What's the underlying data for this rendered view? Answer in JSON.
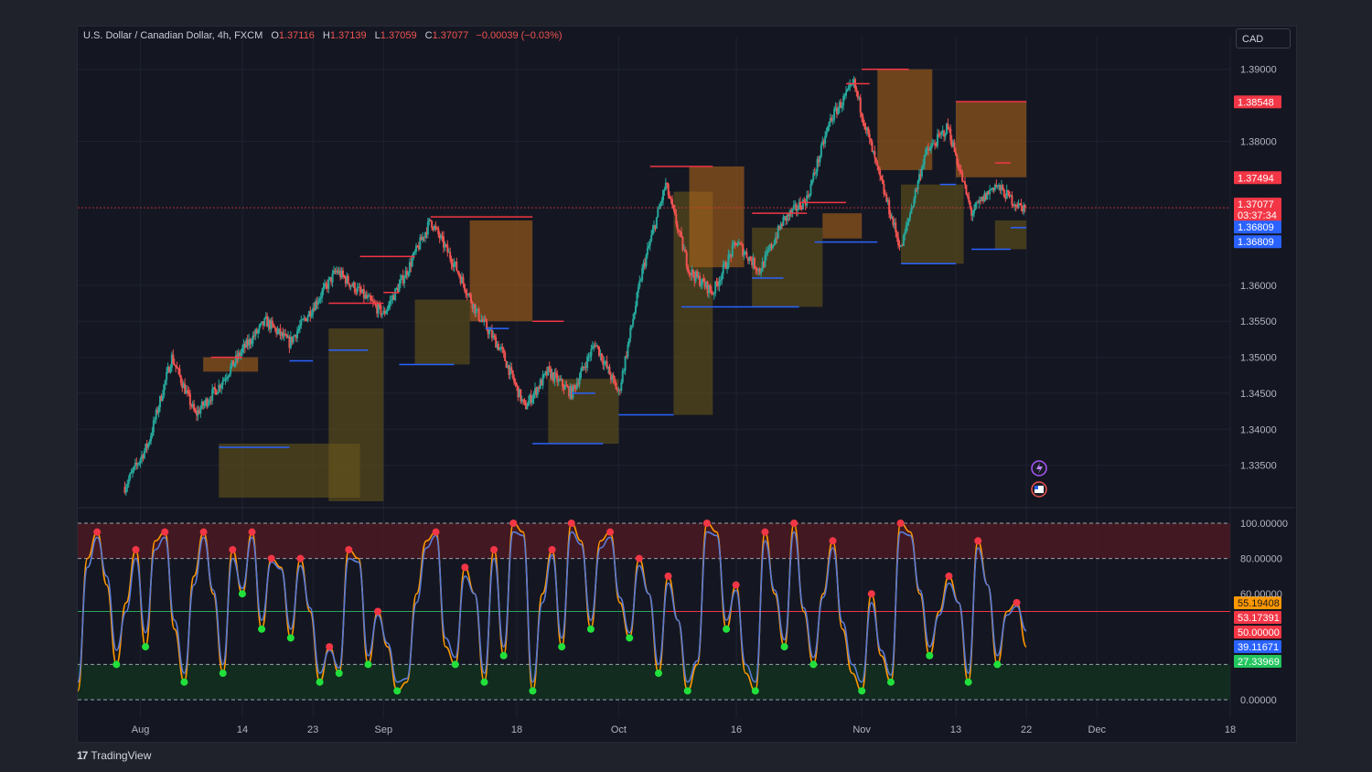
{
  "header": {
    "symbol": "U.S. Dollar / Canadian Dollar, 4h, FXCM",
    "o_label": "O",
    "o_value": "1.37116",
    "h_label": "H",
    "h_value": "1.37139",
    "l_label": "L",
    "l_value": "1.37059",
    "c_label": "C",
    "c_value": "1.37077",
    "change": "−0.00039 (−0.03%)"
  },
  "currency_button": "CAD",
  "branding": {
    "text": "TradingView"
  },
  "colors": {
    "bg": "#141722",
    "grid": "#1e2230",
    "up": "#26a69a",
    "down": "#ef5350",
    "resistance": "#f23645",
    "support": "#2962ff",
    "zone_orange": "#b86a1a",
    "zone_olive": "#6b5a1a",
    "stoch_k": "#ff9800",
    "stoch_d": "#5b7bd5",
    "ob_fill": "#4a1a22",
    "os_fill": "#12301f"
  },
  "chart_data": [
    {
      "type": "candlestick",
      "title": "U.S. Dollar / Canadian Dollar, 4h, FXCM",
      "ylim": [
        1.33,
        1.392
      ],
      "y_ticks": [
        "1.39000",
        "1.38000",
        "1.36000",
        "1.35500",
        "1.35000",
        "1.34500",
        "1.34000",
        "1.33500"
      ],
      "x_ticks": [
        "Aug",
        "14",
        "23",
        "Sep",
        "18",
        "Oct",
        "16",
        "Nov",
        "13",
        "22",
        "Dec",
        "18"
      ],
      "close_path": [
        [
          "Jul 30",
          1.332
        ],
        [
          "Aug 2",
          1.338
        ],
        [
          "Aug 5",
          1.35
        ],
        [
          "Aug 8",
          1.342
        ],
        [
          "Aug 11",
          1.346
        ],
        [
          "Aug 14",
          1.351
        ],
        [
          "Aug 17",
          1.355
        ],
        [
          "Aug 20",
          1.352
        ],
        [
          "Aug 23",
          1.357
        ],
        [
          "Aug 26",
          1.362
        ],
        [
          "Aug 29",
          1.359
        ],
        [
          "Sep 1",
          1.356
        ],
        [
          "Sep 4",
          1.362
        ],
        [
          "Sep 7",
          1.369
        ],
        [
          "Sep 10",
          1.363
        ],
        [
          "Sep 13",
          1.356
        ],
        [
          "Sep 16",
          1.351
        ],
        [
          "Sep 19",
          1.343
        ],
        [
          "Sep 22",
          1.348
        ],
        [
          "Sep 25",
          1.345
        ],
        [
          "Sep 28",
          1.352
        ],
        [
          "Oct 1",
          1.345
        ],
        [
          "Oct 4",
          1.362
        ],
        [
          "Oct 7",
          1.374
        ],
        [
          "Oct 10",
          1.362
        ],
        [
          "Oct 13",
          1.359
        ],
        [
          "Oct 16",
          1.366
        ],
        [
          "Oct 19",
          1.362
        ],
        [
          "Oct 22",
          1.369
        ],
        [
          "Oct 25",
          1.372
        ],
        [
          "Oct 28",
          1.383
        ],
        [
          "Oct 31",
          1.388
        ],
        [
          "Nov 3",
          1.376
        ],
        [
          "Nov 6",
          1.365
        ],
        [
          "Nov 9",
          1.378
        ],
        [
          "Nov 12",
          1.382
        ],
        [
          "Nov 15",
          1.37
        ],
        [
          "Nov 18",
          1.374
        ],
        [
          "Nov 21",
          1.371
        ],
        [
          "Nov 22",
          1.37077
        ]
      ],
      "resistance_levels": [
        1.35,
        1.359,
        1.364,
        1.369,
        1.3765,
        1.37,
        1.388,
        1.39,
        1.3855,
        1.375
      ],
      "support_levels": [
        1.3375,
        1.3495,
        1.351,
        1.338,
        1.342,
        1.357,
        1.366,
        1.363,
        1.368
      ],
      "price_tags": [
        {
          "label": "1.38548",
          "value": 1.38548,
          "color": "#f23645"
        },
        {
          "label": "1.37494",
          "value": 1.37494,
          "color": "#f23645"
        },
        {
          "label": "1.37077",
          "value": 1.37077,
          "color": "#f23645",
          "sub": "03:37:34"
        },
        {
          "label": "1.36809",
          "value": 1.36809,
          "color": "#2962ff"
        },
        {
          "label": "1.36809",
          "value": 1.36809,
          "color": "#2962ff"
        }
      ],
      "last_price": 1.37077
    },
    {
      "type": "line",
      "title": "Stochastic",
      "ylim": [
        0,
        100
      ],
      "y_ticks": [
        "100.00000",
        "80.00000",
        "60.00000",
        "0.00000"
      ],
      "levels": {
        "overbought": 80,
        "oversold": 20,
        "upper": 100,
        "lower": 0,
        "mid": 50
      },
      "series": [
        {
          "values": [
            5,
            80,
            95,
            65,
            20,
            55,
            85,
            30,
            90,
            95,
            40,
            10,
            70,
            95,
            60,
            15,
            85,
            60,
            95,
            40,
            80,
            75,
            35,
            80,
            50,
            10,
            30,
            15,
            85,
            80,
            20,
            50,
            30,
            5,
            10,
            60,
            90,
            95,
            30,
            20,
            75,
            60,
            10,
            85,
            25,
            100,
            95,
            5,
            60,
            85,
            30,
            100,
            90,
            40,
            90,
            95,
            55,
            35,
            80,
            60,
            15,
            70,
            45,
            5,
            20,
            100,
            95,
            40,
            65,
            15,
            5,
            95,
            60,
            30,
            100,
            50,
            20,
            60,
            90,
            40,
            15,
            5,
            60,
            25,
            10,
            100,
            95,
            60,
            25,
            50,
            70,
            55,
            10,
            90,
            65,
            20,
            50,
            55,
            30
          ]
        },
        {
          "values": [
            10,
            75,
            92,
            70,
            28,
            50,
            80,
            38,
            85,
            92,
            45,
            15,
            65,
            92,
            62,
            20,
            80,
            63,
            92,
            45,
            78,
            74,
            40,
            76,
            52,
            15,
            28,
            18,
            80,
            78,
            25,
            48,
            32,
            10,
            12,
            55,
            86,
            93,
            35,
            24,
            70,
            60,
            15,
            80,
            30,
            95,
            93,
            10,
            55,
            82,
            35,
            95,
            88,
            45,
            86,
            92,
            58,
            38,
            76,
            60,
            20,
            66,
            45,
            10,
            22,
            95,
            93,
            45,
            62,
            20,
            10,
            90,
            62,
            34,
            95,
            52,
            24,
            58,
            86,
            44,
            20,
            10,
            55,
            28,
            14,
            95,
            93,
            62,
            30,
            48,
            66,
            55,
            15,
            86,
            65,
            25,
            48,
            53,
            39
          ]
        }
      ],
      "value_tags": [
        {
          "label": "55.19408",
          "color": "#ff9800"
        },
        {
          "label": "53.17391",
          "color": "#f23645"
        },
        {
          "label": "50.00000",
          "color": "#f23645"
        },
        {
          "label": "39.11671",
          "color": "#2962ff"
        },
        {
          "label": "27.33969",
          "color": "#22c55e"
        }
      ]
    }
  ]
}
